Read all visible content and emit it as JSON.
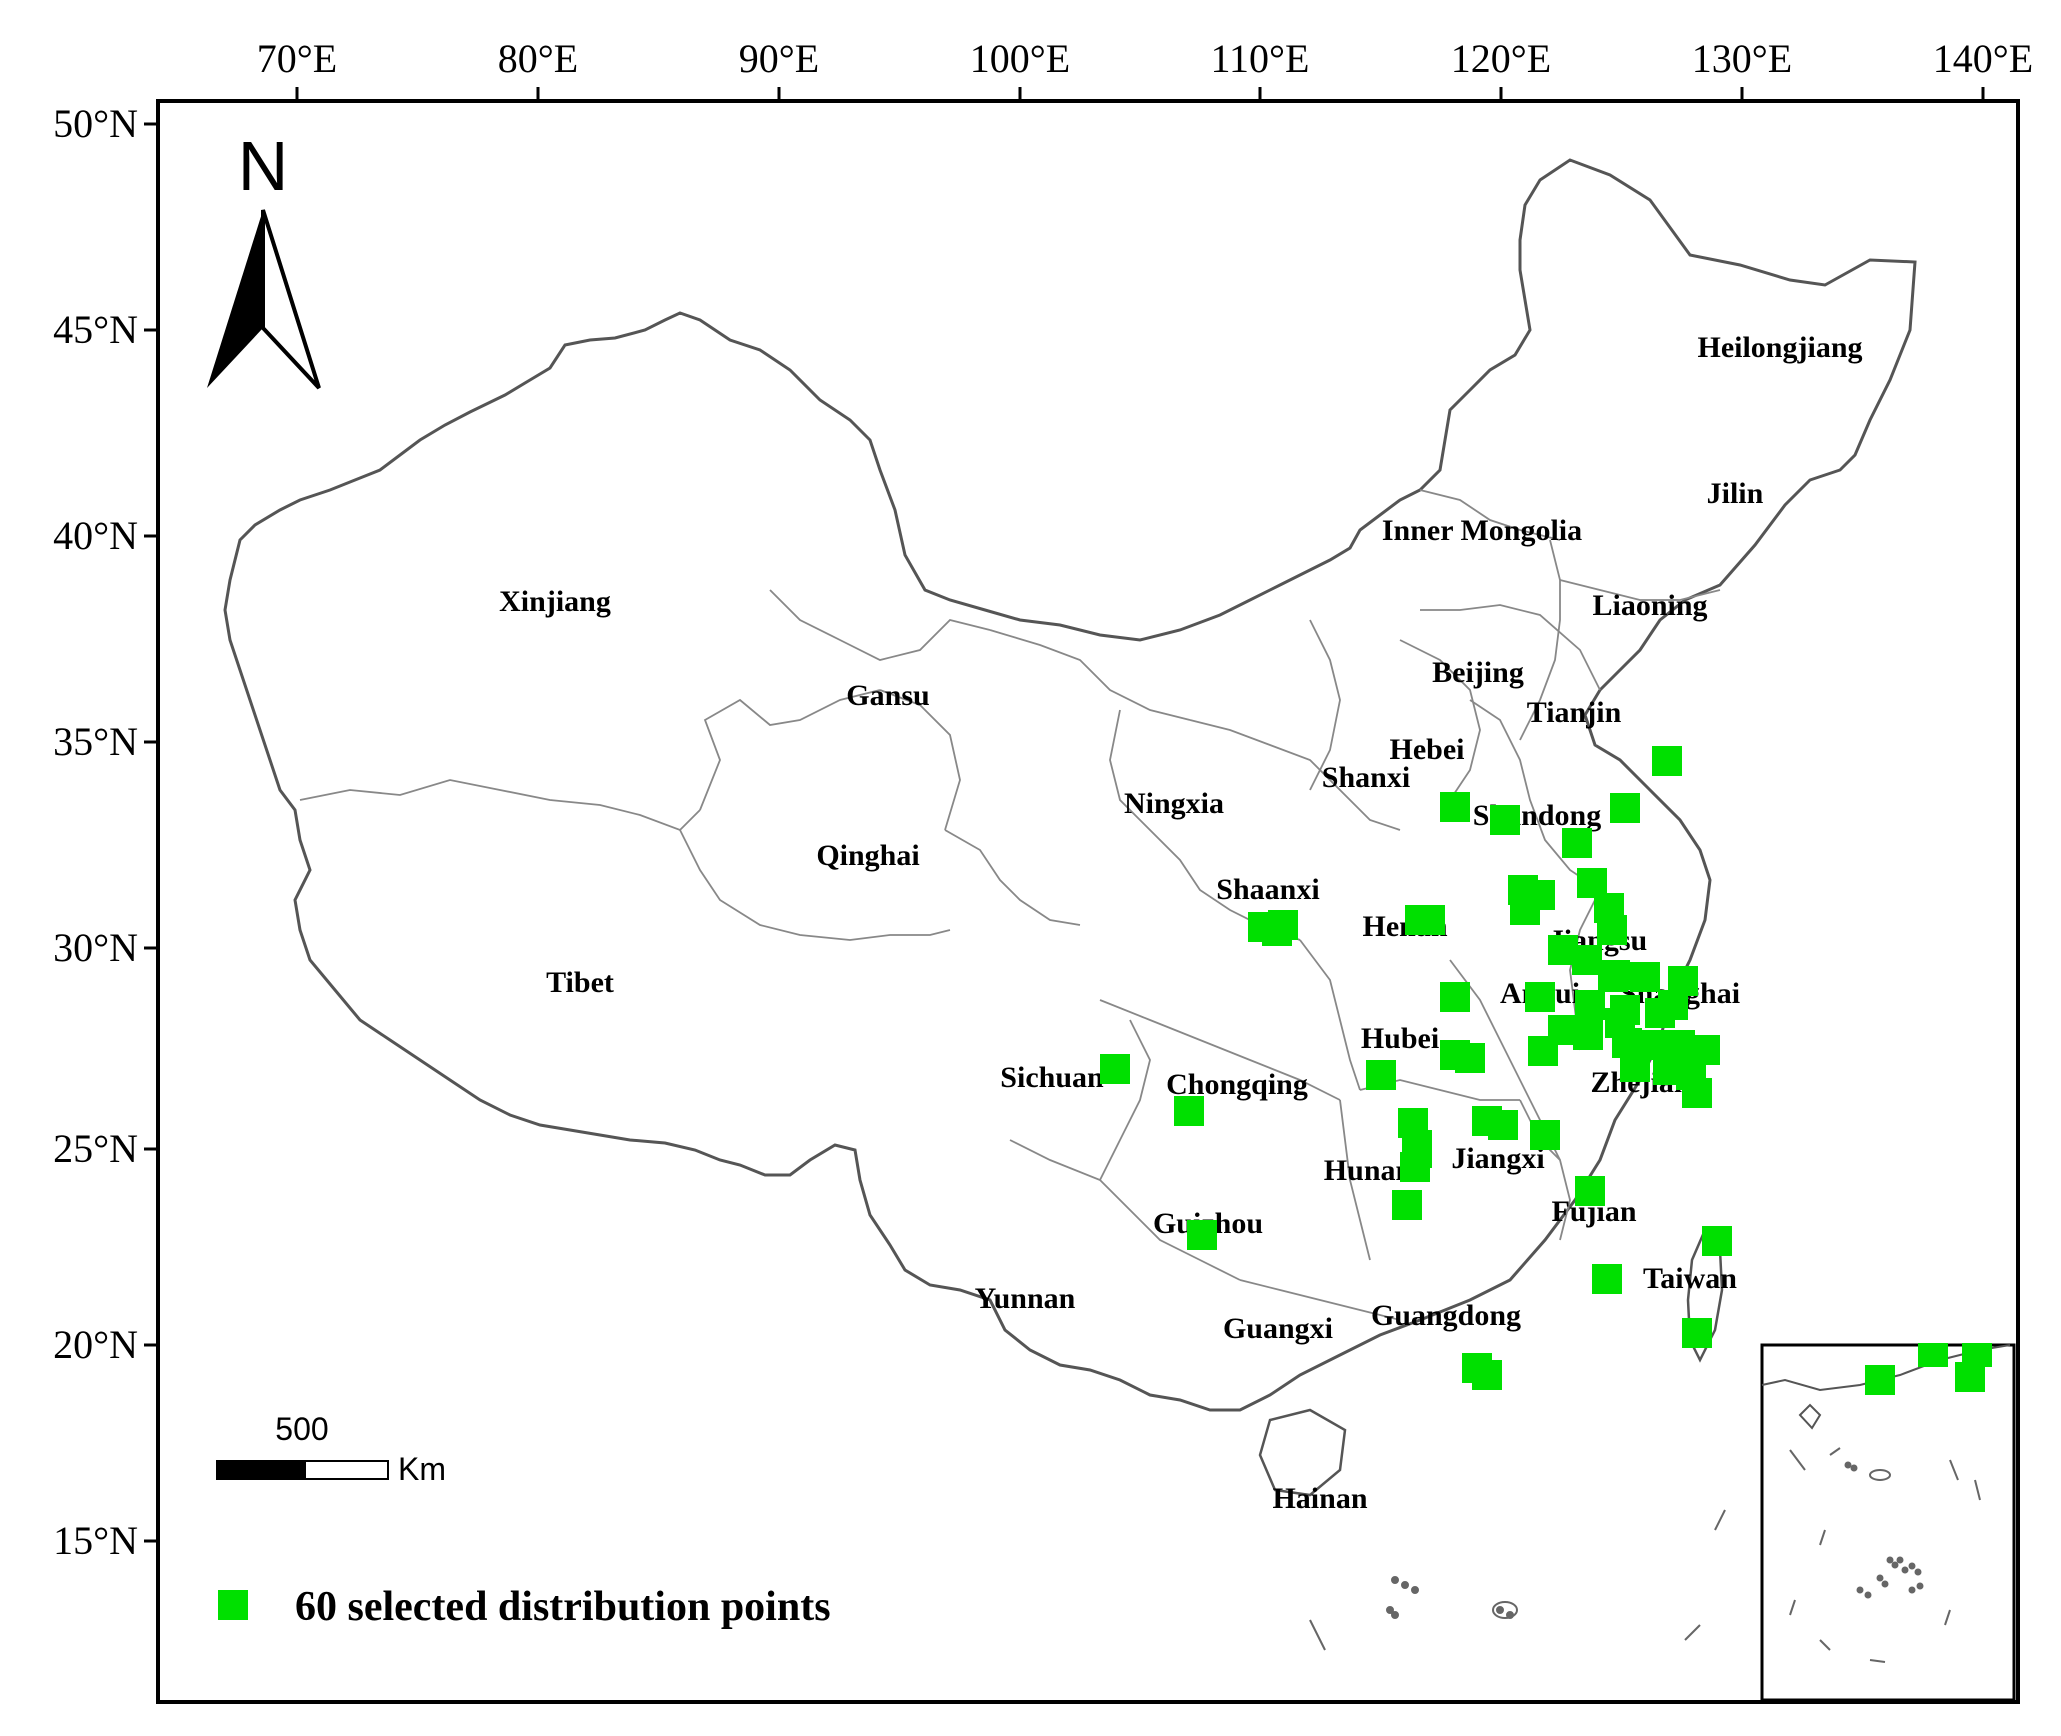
{
  "map": {
    "x_ticks": [
      "70°E",
      "80°E",
      "90°E",
      "100°E",
      "110°E",
      "120°E",
      "130°E",
      "140°E"
    ],
    "y_ticks": [
      "50°N",
      "45°N",
      "40°N",
      "35°N",
      "30°N",
      "25°N",
      "20°N",
      "15°N"
    ],
    "north_label": "N",
    "scale": {
      "value": "500",
      "unit": "Km"
    },
    "legend": {
      "label": "60 selected distribution points",
      "color": "#00e000"
    },
    "colors": {
      "points": "#00e000",
      "border": "#555555",
      "frame": "#000000"
    },
    "provinces": [
      "Heilongjiang",
      "Jilin",
      "Inner Mongolia",
      "Liaoning",
      "Xinjiang",
      "Beijing",
      "Tianjin",
      "Gansu",
      "Hebei",
      "Shanxi",
      "Shandong",
      "Ningxia",
      "Qinghai",
      "Shaanxi",
      "Henan",
      "Jiangsu",
      "Tibet",
      "Anhui",
      "Shanghai",
      "Hubei",
      "Sichuan",
      "Chongqing",
      "Zhejiang",
      "Jiangxi",
      "Hunan",
      "Fujian",
      "Guizhou",
      "Taiwan",
      "Yunnan",
      "Guangxi",
      "Guangdong",
      "Hainan"
    ],
    "points_count": 60
  }
}
